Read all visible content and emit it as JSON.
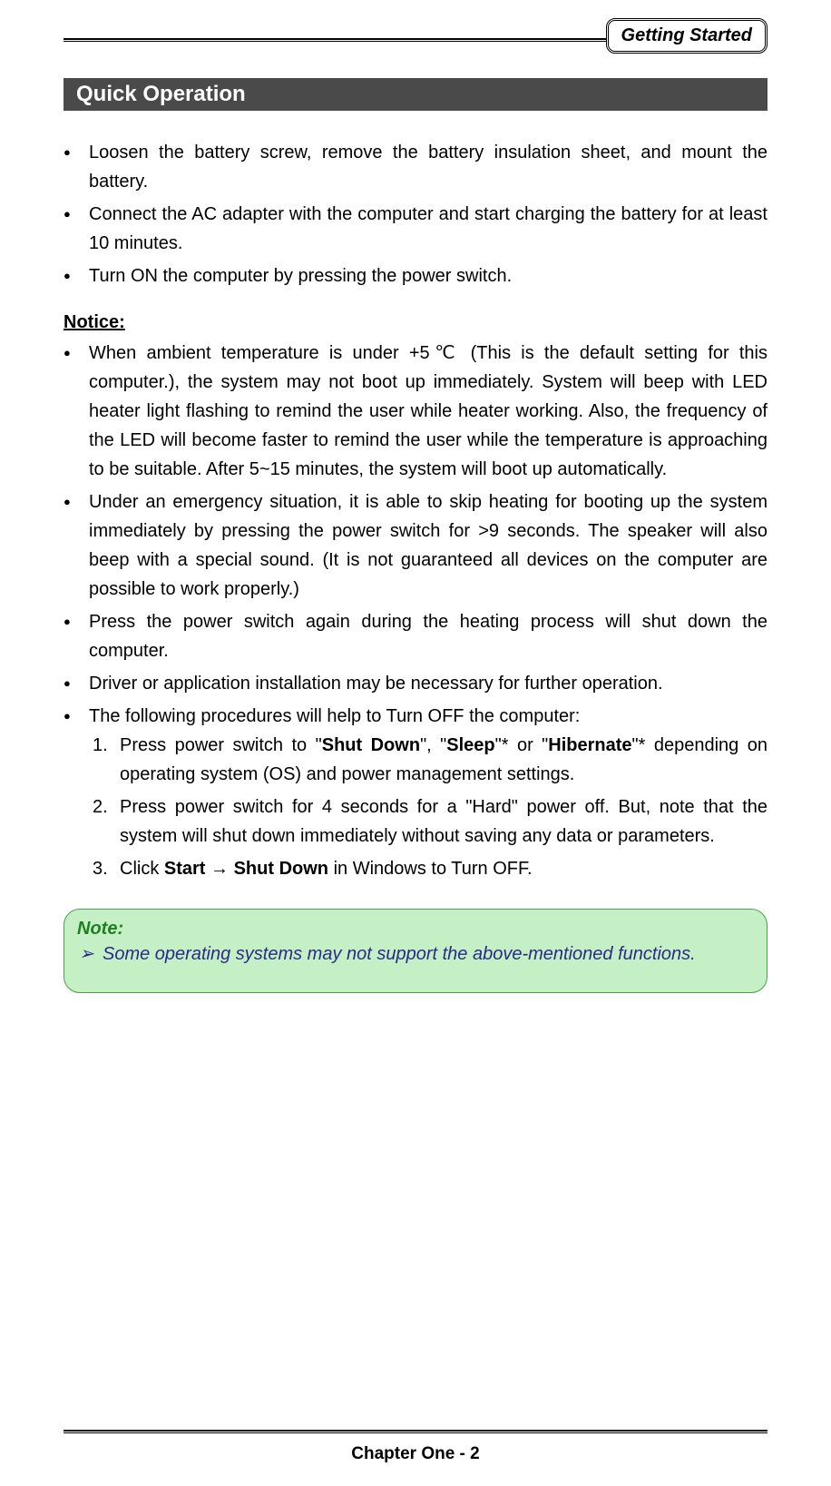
{
  "header": {
    "badge": "Getting Started"
  },
  "section": {
    "title": " Quick Operation"
  },
  "quick_list": [
    "Loosen the battery screw, remove the battery insulation sheet, and mount the battery.",
    "Connect the AC adapter with the computer and start charging the battery for at least 10 minutes.",
    "Turn ON the computer by pressing the power switch."
  ],
  "notice_heading": "Notice:",
  "notice_list": {
    "item1": "When ambient temperature is under +5℃ (This is the default setting for this computer.), the system may not boot up immediately. System will beep with LED heater light flashing to remind the user while heater working. Also, the frequency of the LED will become faster to remind the user while the temperature is approaching to be suitable. After 5~15 minutes, the system will boot up automatically.",
    "item2": "Under an emergency situation, it is able to skip heating for booting up the system immediately by pressing the power switch for >9 seconds. The speaker will also beep with a special sound. (It is not guaranteed all devices on the computer are possible to work properly.)",
    "item3": "Press the power switch again during the heating process will shut down the computer.",
    "item4": "Driver or application installation may be necessary for further operation.",
    "item5": "The following procedures will help to Turn OFF the computer:"
  },
  "procedures": {
    "p1_pre": "Press power switch to \"",
    "p1_shut": "Shut Down",
    "p1_mid1": "\", \"",
    "p1_sleep": "Sleep",
    "p1_mid2": "\"* or \"",
    "p1_hib": "Hibernate",
    "p1_post": "\"* depending on operating system (OS) and power management settings.",
    "p2": "Press power switch for 4 seconds for a \"Hard\" power off. But, note that the system will shut down immediately without saving any data or parameters.",
    "p3_pre": "Click ",
    "p3_start": "Start",
    "p3_arrow": " → ",
    "p3_shut": "Shut Down",
    "p3_post": " in Windows to Turn OFF."
  },
  "note": {
    "title": "Note:",
    "content": "Some operating systems may not support the above-mentioned functions."
  },
  "footer": {
    "text": "Chapter One - 2"
  },
  "colors": {
    "section_bg": "#4a4a4a",
    "note_bg": "#c5f0c5",
    "note_border": "#4aa04a",
    "note_title": "#208020",
    "note_text": "#2a2a8a"
  }
}
